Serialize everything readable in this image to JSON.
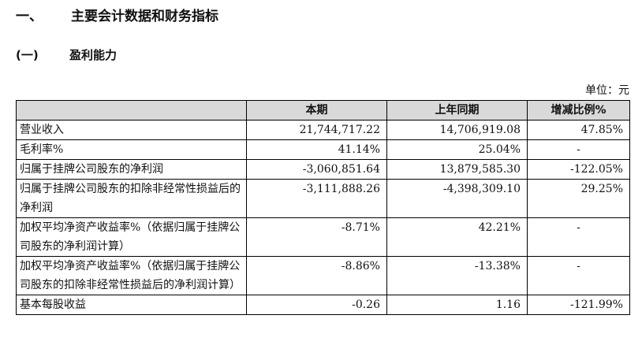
{
  "heading1": {
    "number": "一、",
    "title": "主要会计数据和财务指标"
  },
  "heading2": {
    "number": "(一)",
    "title": "盈利能力"
  },
  "unit_label": "单位：元",
  "table": {
    "headers": [
      "",
      "本期",
      "上年同期",
      "增减比例%"
    ],
    "rows": [
      {
        "label": "营业收入",
        "current": "21,744,717.22",
        "prior": "14,706,919.08",
        "change": "47.85%"
      },
      {
        "label": "毛利率%",
        "current": "41.14%",
        "prior": "25.04%",
        "change": "-"
      },
      {
        "label": "归属于挂牌公司股东的净利润",
        "current": "-3,060,851.64",
        "prior": "13,879,585.30",
        "change": "-122.05%"
      },
      {
        "label": "归属于挂牌公司股东的扣除非经常性损益后的净利润",
        "current": "-3,111,888.26",
        "prior": "-4,398,309.10",
        "change": "29.25%"
      },
      {
        "label": "加权平均净资产收益率%（依据归属于挂牌公司股东的净利润计算）",
        "current": "-8.71%",
        "prior": "42.21%",
        "change": "-"
      },
      {
        "label": "加权平均净资产收益率%（依据归属于挂牌公司股东的扣除非经常性损益后的净利润计算）",
        "current": "-8.86%",
        "prior": "-13.38%",
        "change": "-"
      },
      {
        "label": "基本每股收益",
        "current": "-0.26",
        "prior": "1.16",
        "change": "-121.99%"
      }
    ]
  }
}
